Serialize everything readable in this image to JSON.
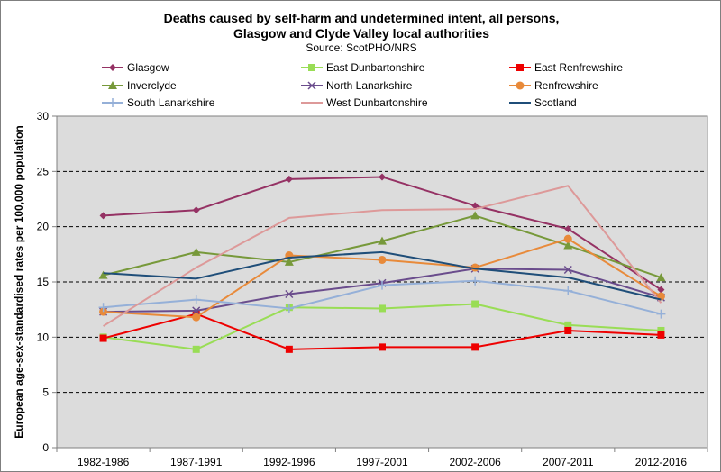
{
  "chart_data": {
    "type": "line",
    "title_line1": "Deaths caused by self-harm and undetermined intent, all persons,",
    "title_line2": "Glasgow and Clyde Valley local authorities",
    "subtitle": "Source: ScotPHO/NRS",
    "xlabel": "",
    "ylabel": "European age-sex-standardised rates per 100,000 population",
    "ylim": [
      0,
      30
    ],
    "yticks": [
      0,
      5,
      10,
      15,
      20,
      25,
      30
    ],
    "grid": "horizontal-dashed",
    "legend_position": "top",
    "categories": [
      "1982-1986",
      "1987-1991",
      "1992-1996",
      "1997-2001",
      "2002-2006",
      "2007-2011",
      "2012-2016"
    ],
    "series": [
      {
        "name": "Glasgow",
        "color": "#953264",
        "marker": "diamond",
        "values": [
          21.0,
          21.5,
          24.3,
          24.5,
          21.9,
          19.8,
          14.3
        ]
      },
      {
        "name": "East Dunbartonshire",
        "color": "#99dd55",
        "marker": "square",
        "values": [
          10.0,
          8.9,
          12.7,
          12.6,
          13.0,
          11.1,
          10.6
        ]
      },
      {
        "name": "East Renfrewshire",
        "color": "#ee0000",
        "marker": "square",
        "values": [
          9.9,
          12.1,
          8.9,
          9.1,
          9.1,
          10.6,
          10.2
        ]
      },
      {
        "name": "Inverclyde",
        "color": "#77993a",
        "marker": "triangle",
        "values": [
          15.6,
          17.7,
          16.8,
          18.7,
          21.0,
          18.3,
          15.4
        ]
      },
      {
        "name": "North Lanarkshire",
        "color": "#6a4c8c",
        "marker": "x",
        "values": [
          12.3,
          12.4,
          13.9,
          14.9,
          16.2,
          16.1,
          13.6
        ]
      },
      {
        "name": "Renfrewshire",
        "color": "#e88a3a",
        "marker": "circle",
        "values": [
          12.3,
          11.8,
          17.4,
          17.0,
          16.3,
          18.9,
          13.7
        ]
      },
      {
        "name": "South Lanarkshire",
        "color": "#95b0d8",
        "marker": "plus",
        "values": [
          12.7,
          13.4,
          12.6,
          14.7,
          15.1,
          14.2,
          12.1
        ]
      },
      {
        "name": "West Dunbartonshire",
        "color": "#dd9999",
        "marker": "none",
        "values": [
          11.0,
          16.3,
          20.8,
          21.5,
          21.6,
          23.7,
          13.1
        ]
      },
      {
        "name": "Scotland",
        "color": "#1f4e79",
        "marker": "none",
        "values": [
          15.8,
          15.3,
          17.2,
          17.7,
          16.2,
          15.4,
          13.4
        ]
      }
    ]
  }
}
